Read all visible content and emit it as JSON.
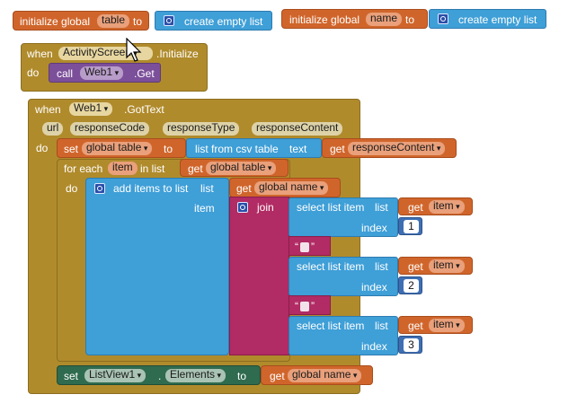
{
  "blocks": {
    "init_table": {
      "label": "initialize global",
      "name": "table",
      "to": "to",
      "value": "create empty list"
    },
    "init_name": {
      "label": "initialize global",
      "name": "name",
      "to": "to",
      "value": "create empty list"
    },
    "event_init": {
      "when": "when",
      "component": "ActivityScreen",
      "event": ".Initialize",
      "do": "do",
      "call": "call",
      "call_component": "Web1",
      "method": ".Get"
    },
    "event_gettext": {
      "when": "when",
      "component": "Web1",
      "event": ".GotText",
      "params": [
        "url",
        "responseCode",
        "responseType",
        "responseContent"
      ],
      "do": "do",
      "set": "set",
      "set_var": "global table",
      "to": "to",
      "csv": "list from csv table",
      "csv_text": "text",
      "get": "get",
      "get_var": "responseContent",
      "foreach": "for each",
      "item": "item",
      "in_list": "in list",
      "foreach_get": "get",
      "foreach_var": "global table",
      "inner_do": "do",
      "add_items": "add items to list",
      "list": "list",
      "add_get": "get",
      "add_var": "global name",
      "item_label": "item",
      "join": "join",
      "selects": [
        {
          "label": "select list item",
          "list": "list",
          "get": "get",
          "var": "item",
          "index_label": "index",
          "index": "1"
        },
        {
          "label": "select list item",
          "list": "list",
          "get": "get",
          "var": "item",
          "index_label": "index",
          "index": "2"
        },
        {
          "label": "select list item",
          "list": "list",
          "get": "get",
          "var": "item",
          "index_label": "index",
          "index": "3"
        }
      ],
      "str_open": "“",
      "str_close": "”",
      "final_set": "set",
      "final_component": "ListView1",
      "dot": ".",
      "final_prop": "Elements",
      "final_to": "to",
      "final_get": "get",
      "final_var": "global name"
    }
  },
  "colors": {
    "variable": "#d0652b",
    "list": "#3f9fd7",
    "control": "#b08b2c",
    "component_call": "#7c4f9a",
    "text": "#b12b64",
    "component_set": "#2f6b4e",
    "math": "#3f6fb3"
  },
  "icons": [
    "gear-icon",
    "mouse-cursor-icon",
    "dropdown-arrow-icon"
  ]
}
